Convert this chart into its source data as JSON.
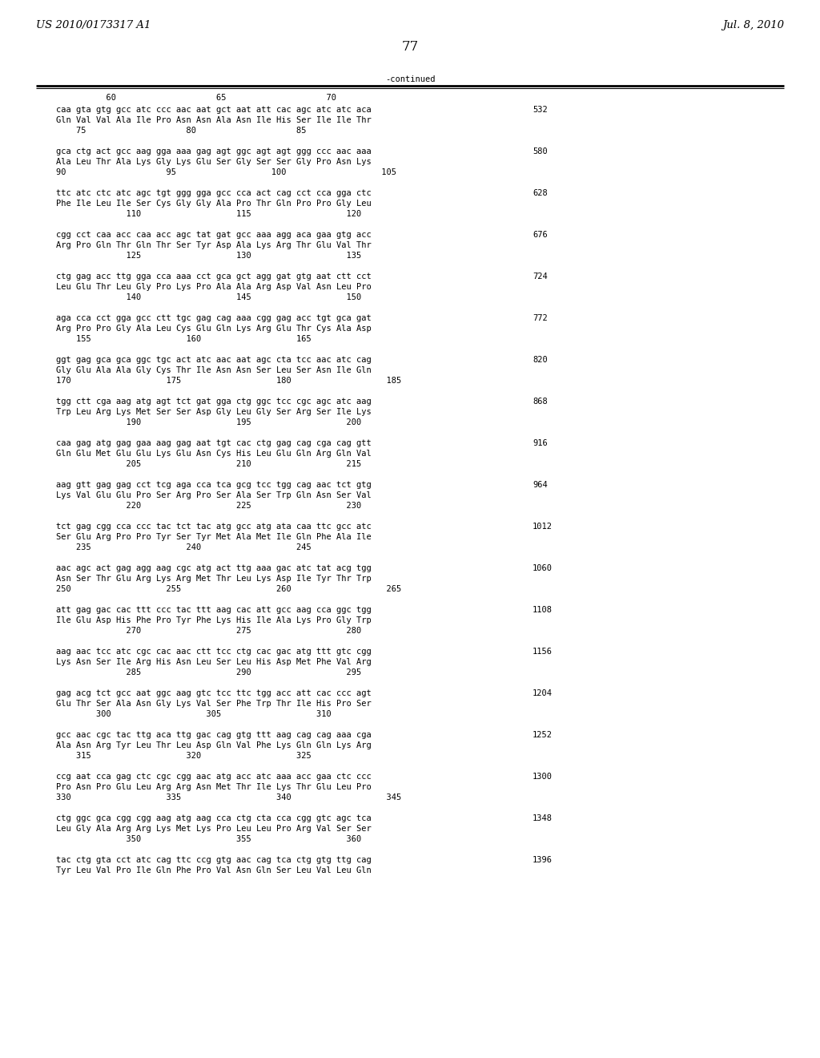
{
  "header_left": "US 2010/0173317 A1",
  "header_right": "Jul. 8, 2010",
  "page_number": "77",
  "continued_label": "-continued",
  "col_numbers_line": "          60                    65                    70",
  "background_color": "#ffffff",
  "text_color": "#000000",
  "font_size": 7.5,
  "header_font_size": 9.5,
  "sequence_blocks": [
    {
      "dna": "caa gta gtg gcc atc ccc aac aat gct aat att cac agc atc atc aca",
      "aa": "Gln Val Val Ala Ile Pro Asn Asn Ala Asn Ile His Ser Ile Ile Thr",
      "nums": "    75                    80                    85",
      "right_num": "532"
    },
    {
      "dna": "gca ctg act gcc aag gga aaa gag agt ggc agt agt ggg ccc aac aaa",
      "aa": "Ala Leu Thr Ala Lys Gly Lys Glu Ser Gly Ser Ser Gly Pro Asn Lys",
      "nums": "90                    95                   100                   105",
      "right_num": "580"
    },
    {
      "dna": "ttc atc ctc atc agc tgt ggg gga gcc cca act cag cct cca gga ctc",
      "aa": "Phe Ile Leu Ile Ser Cys Gly Gly Ala Pro Thr Gln Pro Pro Gly Leu",
      "nums": "              110                   115                   120",
      "right_num": "628"
    },
    {
      "dna": "cgg cct caa acc caa acc agc tat gat gcc aaa agg aca gaa gtg acc",
      "aa": "Arg Pro Gln Thr Gln Thr Ser Tyr Asp Ala Lys Arg Thr Glu Val Thr",
      "nums": "              125                   130                   135",
      "right_num": "676"
    },
    {
      "dna": "ctg gag acc ttg gga cca aaa cct gca gct agg gat gtg aat ctt cct",
      "aa": "Leu Glu Thr Leu Gly Pro Lys Pro Ala Ala Arg Asp Val Asn Leu Pro",
      "nums": "              140                   145                   150",
      "right_num": "724"
    },
    {
      "dna": "aga cca cct gga gcc ctt tgc gag cag aaa cgg gag acc tgt gca gat",
      "aa": "Arg Pro Pro Gly Ala Leu Cys Glu Gln Lys Arg Glu Thr Cys Ala Asp",
      "nums": "    155                   160                   165",
      "right_num": "772"
    },
    {
      "dna": "ggt gag gca gca ggc tgc act atc aac aat agc cta tcc aac atc cag",
      "aa": "Gly Glu Ala Ala Gly Cys Thr Ile Asn Asn Ser Leu Ser Asn Ile Gln",
      "nums": "170                   175                   180                   185",
      "right_num": "820"
    },
    {
      "dna": "tgg ctt cga aag atg agt tct gat gga ctg ggc tcc cgc agc atc aag",
      "aa": "Trp Leu Arg Lys Met Ser Ser Asp Gly Leu Gly Ser Arg Ser Ile Lys",
      "nums": "              190                   195                   200",
      "right_num": "868"
    },
    {
      "dna": "caa gag atg gag gaa aag gag aat tgt cac ctg gag cag cga cag gtt",
      "aa": "Gln Glu Met Glu Glu Lys Glu Asn Cys His Leu Glu Gln Arg Gln Val",
      "nums": "              205                   210                   215",
      "right_num": "916"
    },
    {
      "dna": "aag gtt gag gag cct tcg aga cca tca gcg tcc tgg cag aac tct gtg",
      "aa": "Lys Val Glu Glu Pro Ser Arg Pro Ser Ala Ser Trp Gln Asn Ser Val",
      "nums": "              220                   225                   230",
      "right_num": "964"
    },
    {
      "dna": "tct gag cgg cca ccc tac tct tac atg gcc atg ata caa ttc gcc atc",
      "aa": "Ser Glu Arg Pro Pro Tyr Ser Tyr Met Ala Met Ile Gln Phe Ala Ile",
      "nums": "    235                   240                   245",
      "right_num": "1012"
    },
    {
      "dna": "aac agc act gag agg aag cgc atg act ttg aaa gac atc tat acg tgg",
      "aa": "Asn Ser Thr Glu Arg Lys Arg Met Thr Leu Lys Asp Ile Tyr Thr Trp",
      "nums": "250                   255                   260                   265",
      "right_num": "1060"
    },
    {
      "dna": "att gag gac cac ttt ccc tac ttt aag cac att gcc aag cca ggc tgg",
      "aa": "Ile Glu Asp His Phe Pro Tyr Phe Lys His Ile Ala Lys Pro Gly Trp",
      "nums": "              270                   275                   280",
      "right_num": "1108"
    },
    {
      "dna": "aag aac tcc atc cgc cac aac ctt tcc ctg cac gac atg ttt gtc cgg",
      "aa": "Lys Asn Ser Ile Arg His Asn Leu Ser Leu His Asp Met Phe Val Arg",
      "nums": "              285                   290                   295",
      "right_num": "1156"
    },
    {
      "dna": "gag acg tct gcc aat ggc aag gtc tcc ttc tgg acc att cac ccc agt",
      "aa": "Glu Thr Ser Ala Asn Gly Lys Val Ser Phe Trp Thr Ile His Pro Ser",
      "nums": "        300                   305                   310",
      "right_num": "1204"
    },
    {
      "dna": "gcc aac cgc tac ttg aca ttg gac cag gtg ttt aag cag cag aaa cga",
      "aa": "Ala Asn Arg Tyr Leu Thr Leu Asp Gln Val Phe Lys Gln Gln Lys Arg",
      "nums": "    315                   320                   325",
      "right_num": "1252"
    },
    {
      "dna": "ccg aat cca gag ctc cgc cgg aac atg acc atc aaa acc gaa ctc ccc",
      "aa": "Pro Asn Pro Glu Leu Arg Arg Asn Met Thr Ile Lys Thr Glu Leu Pro",
      "nums": "330                   335                   340                   345",
      "right_num": "1300"
    },
    {
      "dna": "ctg ggc gca cgg cgg aag atg aag cca ctg cta cca cgg gtc agc tca",
      "aa": "Leu Gly Ala Arg Arg Lys Met Lys Pro Leu Leu Pro Arg Val Ser Ser",
      "nums": "              350                   355                   360",
      "right_num": "1348"
    },
    {
      "dna": "tac ctg gta cct atc cag ttc ccg gtg aac cag tca ctg gtg ttg cag",
      "aa": "Tyr Leu Val Pro Ile Gln Phe Pro Val Asn Gln Ser Leu Val Leu Gln",
      "nums": "",
      "right_num": "1396"
    }
  ]
}
